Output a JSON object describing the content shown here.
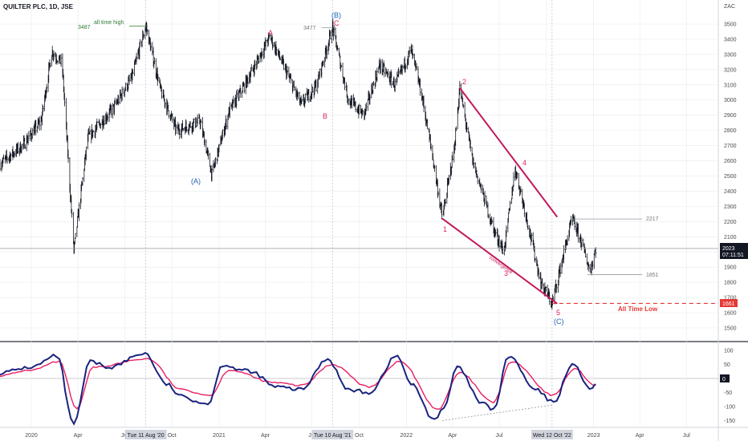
{
  "header": {
    "title": "QUILTER PLC, 1D, JSE"
  },
  "colors": {
    "price_bar": "#131722",
    "wave": "#e0245e",
    "wave_alt": "#1e63b4",
    "trendline": "#c2185b",
    "indicator_fast": "#1a237e",
    "indicator_slow": "#e91e63",
    "atl_line": "#e53935",
    "grid": "#e9ebef",
    "axis_text": "#4a4a4a"
  },
  "price_axis": {
    "unit_label": "ZAC",
    "ticks": [
      3500,
      3400,
      3300,
      3200,
      3100,
      3000,
      2900,
      2800,
      2700,
      2600,
      2500,
      2400,
      2300,
      2200,
      2100,
      2000,
      1900,
      1800,
      1700,
      1600,
      1500
    ]
  },
  "price_badge": {
    "value": "2023",
    "time": "07:11:51"
  },
  "atl_badge": "1661",
  "osc_axis": {
    "ticks": [
      "100",
      "50",
      "-50",
      "-100",
      "-150"
    ],
    "zero_badge": "0"
  },
  "time_axis": {
    "labels": [
      "2020",
      "Apr",
      "Jul",
      "Oct",
      "2021",
      "Apr",
      "Jul",
      "Oct",
      "2022",
      "Apr",
      "Jul",
      "Oct",
      "2023",
      "Apr",
      "Jul"
    ],
    "highlights": [
      "Tue 11 Aug '20",
      "Tue 10 Aug '21",
      "Wed 12 Oct '22"
    ]
  },
  "annotations": {
    "ath_label": "all time high",
    "ath_value": "3487",
    "peak_value": "3477",
    "level_2217": "2217",
    "level_1851": "1851",
    "convergence": "convergence",
    "all_time_low": "All Time Low"
  },
  "wave_labels": {
    "A_paren": "(A)",
    "A": "A",
    "B": "B",
    "C": "C",
    "B_paren": "(B)",
    "w1": "1",
    "w2": "2",
    "w3": "3",
    "w4": "4",
    "w5": "5",
    "C_paren": "(C)"
  },
  "chart_data": {
    "type": "ohlc",
    "series_name": "QUILTER PLC, 1D, JSE",
    "y_unit": "ZAC",
    "ylim": [
      1450,
      3580
    ],
    "x_range": [
      "2019-11-01",
      "2023-09-01"
    ],
    "key_points": [
      {
        "date": "2019-11-01",
        "close": 2580
      },
      {
        "date": "2019-12-15",
        "close": 2700
      },
      {
        "date": "2020-01-20",
        "close": 2860
      },
      {
        "date": "2020-02-10",
        "close": 3320
      },
      {
        "date": "2020-03-01",
        "close": 3240
      },
      {
        "date": "2020-03-24",
        "close": 2010
      },
      {
        "date": "2020-04-20",
        "close": 2750
      },
      {
        "date": "2020-06-10",
        "close": 2950
      },
      {
        "date": "2020-07-15",
        "close": 3150
      },
      {
        "date": "2020-08-11",
        "close": 3487
      },
      {
        "date": "2020-09-10",
        "close": 3050
      },
      {
        "date": "2020-10-10",
        "close": 2800
      },
      {
        "date": "2020-11-25",
        "close": 2860
      },
      {
        "date": "2020-12-18",
        "close": 2510
      },
      {
        "date": "2021-01-20",
        "close": 2920
      },
      {
        "date": "2021-02-20",
        "close": 3100
      },
      {
        "date": "2021-03-20",
        "close": 3280
      },
      {
        "date": "2021-04-10",
        "close": 3420
      },
      {
        "date": "2021-05-10",
        "close": 3200
      },
      {
        "date": "2021-06-10",
        "close": 2970
      },
      {
        "date": "2021-07-10",
        "close": 3100
      },
      {
        "date": "2021-08-10",
        "close": 3477
      },
      {
        "date": "2021-09-10",
        "close": 3000
      },
      {
        "date": "2021-10-10",
        "close": 2900
      },
      {
        "date": "2021-11-10",
        "close": 3230
      },
      {
        "date": "2021-12-10",
        "close": 3100
      },
      {
        "date": "2022-01-10",
        "close": 3330
      },
      {
        "date": "2022-01-30",
        "close": 3050
      },
      {
        "date": "2022-02-20",
        "close": 2650
      },
      {
        "date": "2022-03-12",
        "close": 2220
      },
      {
        "date": "2022-04-05",
        "close": 2700
      },
      {
        "date": "2022-04-15",
        "close": 3080
      },
      {
        "date": "2022-05-10",
        "close": 2600
      },
      {
        "date": "2022-06-20",
        "close": 2150
      },
      {
        "date": "2022-07-10",
        "close": 2000
      },
      {
        "date": "2022-08-01",
        "close": 2550
      },
      {
        "date": "2022-08-25",
        "close": 2200
      },
      {
        "date": "2022-09-20",
        "close": 1800
      },
      {
        "date": "2022-10-12",
        "close": 1661
      },
      {
        "date": "2022-11-10",
        "close": 2080
      },
      {
        "date": "2022-11-20",
        "close": 2217
      },
      {
        "date": "2022-12-10",
        "close": 2050
      },
      {
        "date": "2022-12-25",
        "close": 1870
      },
      {
        "date": "2023-01-05",
        "close": 2023
      }
    ],
    "horizontal_levels": [
      3487,
      3477,
      2217,
      2023,
      1851,
      1661
    ],
    "trendlines": [
      {
        "from": {
          "date": "2022-04-15",
          "value": 3080
        },
        "to": {
          "date": "2022-10-22",
          "value": 2230
        }
      },
      {
        "from": {
          "date": "2022-03-12",
          "value": 2220
        },
        "to": {
          "date": "2022-10-22",
          "value": 1660
        }
      }
    ],
    "oscillator": {
      "ylim": [
        -165,
        125
      ],
      "zero_line": 0,
      "series": [
        {
          "name": "fast",
          "values": [
            [
              "2019-11-01",
              20
            ],
            [
              "2020-01-01",
              40
            ],
            [
              "2020-02-20",
              80
            ],
            [
              "2020-03-24",
              -165
            ],
            [
              "2020-04-25",
              60
            ],
            [
              "2020-06-01",
              40
            ],
            [
              "2020-08-10",
              90
            ],
            [
              "2020-09-20",
              -20
            ],
            [
              "2020-10-20",
              -65
            ],
            [
              "2020-12-10",
              -90
            ],
            [
              "2021-01-10",
              50
            ],
            [
              "2021-02-15",
              30
            ],
            [
              "2021-03-10",
              20
            ],
            [
              "2021-04-20",
              -30
            ],
            [
              "2021-06-10",
              -40
            ],
            [
              "2021-08-01",
              70
            ],
            [
              "2021-09-10",
              -40
            ],
            [
              "2021-10-20",
              -50
            ],
            [
              "2021-12-15",
              80
            ],
            [
              "2022-01-10",
              -20
            ],
            [
              "2022-02-25",
              -145
            ],
            [
              "2022-03-15",
              -110
            ],
            [
              "2022-04-10",
              40
            ],
            [
              "2022-05-30",
              -90
            ],
            [
              "2022-06-20",
              -110
            ],
            [
              "2022-07-20",
              80
            ],
            [
              "2022-09-10",
              -40
            ],
            [
              "2022-10-15",
              -85
            ],
            [
              "2022-11-20",
              50
            ],
            [
              "2022-12-30",
              -40
            ],
            [
              "2023-01-05",
              -20
            ]
          ]
        },
        {
          "name": "slow",
          "values": [
            [
              "2019-11-01",
              10
            ],
            [
              "2020-01-01",
              30
            ],
            [
              "2020-02-25",
              60
            ],
            [
              "2020-03-30",
              -110
            ],
            [
              "2020-05-01",
              40
            ],
            [
              "2020-08-15",
              70
            ],
            [
              "2020-10-20",
              -40
            ],
            [
              "2020-12-15",
              -60
            ],
            [
              "2021-01-20",
              30
            ],
            [
              "2021-04-20",
              -15
            ],
            [
              "2021-06-10",
              -25
            ],
            [
              "2021-08-10",
              50
            ],
            [
              "2021-10-20",
              -30
            ],
            [
              "2021-12-20",
              60
            ],
            [
              "2022-03-05",
              -110
            ],
            [
              "2022-04-15",
              20
            ],
            [
              "2022-06-20",
              -85
            ],
            [
              "2022-07-25",
              60
            ],
            [
              "2022-10-15",
              -60
            ],
            [
              "2022-11-25",
              35
            ],
            [
              "2023-01-05",
              -25
            ]
          ]
        }
      ],
      "divergence_line": {
        "from": {
          "date": "2022-03-12",
          "value": -150
        },
        "to": {
          "date": "2022-10-12",
          "value": -95
        }
      }
    }
  }
}
